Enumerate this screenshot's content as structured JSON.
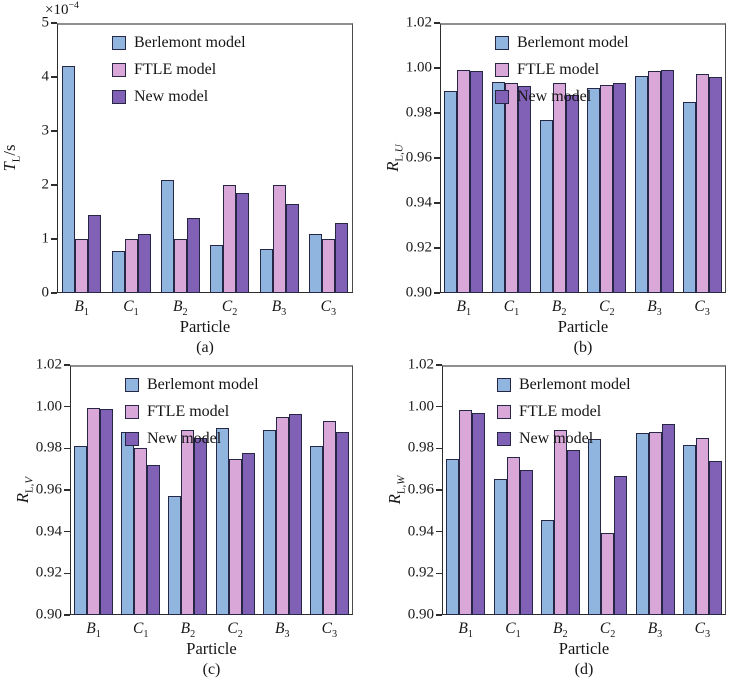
{
  "figure": {
    "background": "#ffffff"
  },
  "colors": {
    "berlemont": "#90b6e0",
    "ftle": "#d9a8d9",
    "new": "#8061b5",
    "bar_edge": "#262645",
    "axis": "#2d2d2d",
    "text": "#1a1a1a"
  },
  "legend_labels": [
    "Berlemont model",
    "FTLE model",
    "New model"
  ],
  "xlabel": "Particle",
  "categories": [
    {
      "base": "B",
      "sub": "1"
    },
    {
      "base": "C",
      "sub": "1"
    },
    {
      "base": "B",
      "sub": "2"
    },
    {
      "base": "C",
      "sub": "2"
    },
    {
      "base": "B",
      "sub": "3"
    },
    {
      "base": "C",
      "sub": "3"
    }
  ],
  "chart_data": [
    {
      "id": "a",
      "caption": "(a)",
      "type": "bar",
      "title": "",
      "ylabel": {
        "base": "T",
        "sub_roman": "L",
        "sub_italic": "",
        "suffix": "/s"
      },
      "scale_label": {
        "mantissa": "×10",
        "exp": "−4"
      },
      "xlabel": "Particle",
      "ylim": [
        0,
        5
      ],
      "ytick_values": [
        0,
        1,
        2,
        3,
        4,
        5
      ],
      "ytick_labels": [
        "0",
        "1",
        "2",
        "3",
        "4",
        "5"
      ],
      "categories": [
        "B1",
        "C1",
        "B2",
        "C2",
        "B3",
        "C3"
      ],
      "series": [
        {
          "name": "Berlemont model",
          "color_key": "berlemont",
          "values": [
            4.2,
            0.77,
            2.1,
            0.88,
            0.82,
            1.1
          ]
        },
        {
          "name": "FTLE model",
          "color_key": "ftle",
          "values": [
            1.0,
            1.0,
            1.0,
            2.0,
            2.0,
            1.0
          ]
        },
        {
          "name": "New model",
          "color_key": "new",
          "values": [
            1.45,
            1.1,
            1.38,
            1.85,
            1.65,
            1.3
          ]
        }
      ],
      "units_note": "values are ×10⁻⁴ s"
    },
    {
      "id": "b",
      "caption": "(b)",
      "type": "bar",
      "title": "",
      "ylabel": {
        "base": "R",
        "sub_roman": "L,",
        "sub_italic": "U",
        "suffix": ""
      },
      "scale_label": null,
      "xlabel": "Particle",
      "ylim": [
        0.9,
        1.02
      ],
      "ytick_values": [
        0.9,
        0.92,
        0.94,
        0.96,
        0.98,
        1.0,
        1.02
      ],
      "ytick_labels": [
        "0.90",
        "0.92",
        "0.94",
        "0.96",
        "0.98",
        "1.00",
        "1.02"
      ],
      "categories": [
        "B1",
        "C1",
        "B2",
        "C2",
        "B3",
        "C3"
      ],
      "series": [
        {
          "name": "Berlemont model",
          "color_key": "berlemont",
          "values": [
            0.99,
            0.994,
            0.977,
            0.991,
            0.9965,
            0.985
          ]
        },
        {
          "name": "FTLE model",
          "color_key": "ftle",
          "values": [
            0.999,
            0.9935,
            0.9935,
            0.9925,
            0.9985,
            0.9975
          ]
        },
        {
          "name": "New model",
          "color_key": "new",
          "values": [
            0.9985,
            0.992,
            0.988,
            0.9935,
            0.999,
            0.996
          ]
        }
      ]
    },
    {
      "id": "c",
      "caption": "(c)",
      "type": "bar",
      "title": "",
      "ylabel": {
        "base": "R",
        "sub_roman": "L,",
        "sub_italic": "V",
        "suffix": ""
      },
      "scale_label": null,
      "xlabel": "Particle",
      "ylim": [
        0.9,
        1.02
      ],
      "ytick_values": [
        0.9,
        0.92,
        0.94,
        0.96,
        0.98,
        1.0,
        1.02
      ],
      "ytick_labels": [
        "0.90",
        "0.92",
        "0.94",
        "0.96",
        "0.98",
        "1.00",
        "1.02"
      ],
      "categories": [
        "B1",
        "C1",
        "B2",
        "C2",
        "B3",
        "C3"
      ],
      "series": [
        {
          "name": "Berlemont model",
          "color_key": "berlemont",
          "values": [
            0.981,
            0.988,
            0.957,
            0.99,
            0.989,
            0.981
          ]
        },
        {
          "name": "FTLE model",
          "color_key": "ftle",
          "values": [
            0.9995,
            0.98,
            0.989,
            0.975,
            0.995,
            0.993
          ]
        },
        {
          "name": "New model",
          "color_key": "new",
          "values": [
            0.999,
            0.972,
            0.985,
            0.978,
            0.9965,
            0.988
          ]
        }
      ]
    },
    {
      "id": "d",
      "caption": "(d)",
      "type": "bar",
      "title": "",
      "ylabel": {
        "base": "R",
        "sub_roman": "L,",
        "sub_italic": "W",
        "suffix": ""
      },
      "scale_label": null,
      "xlabel": "Particle",
      "ylim": [
        0.9,
        1.02
      ],
      "ytick_values": [
        0.9,
        0.92,
        0.94,
        0.96,
        0.98,
        1.0,
        1.02
      ],
      "ytick_labels": [
        "0.90",
        "0.92",
        "0.94",
        "0.96",
        "0.98",
        "1.00",
        "1.02"
      ],
      "categories": [
        "B1",
        "C1",
        "B2",
        "C2",
        "B3",
        "C3"
      ],
      "series": [
        {
          "name": "Berlemont model",
          "color_key": "berlemont",
          "values": [
            0.975,
            0.9655,
            0.9455,
            0.9845,
            0.9875,
            0.9815
          ]
        },
        {
          "name": "FTLE model",
          "color_key": "ftle",
          "values": [
            0.9985,
            0.976,
            0.989,
            0.9395,
            0.988,
            0.985
          ]
        },
        {
          "name": "New model",
          "color_key": "new",
          "values": [
            0.997,
            0.9695,
            0.979,
            0.9665,
            0.9915,
            0.974
          ]
        }
      ]
    }
  ]
}
